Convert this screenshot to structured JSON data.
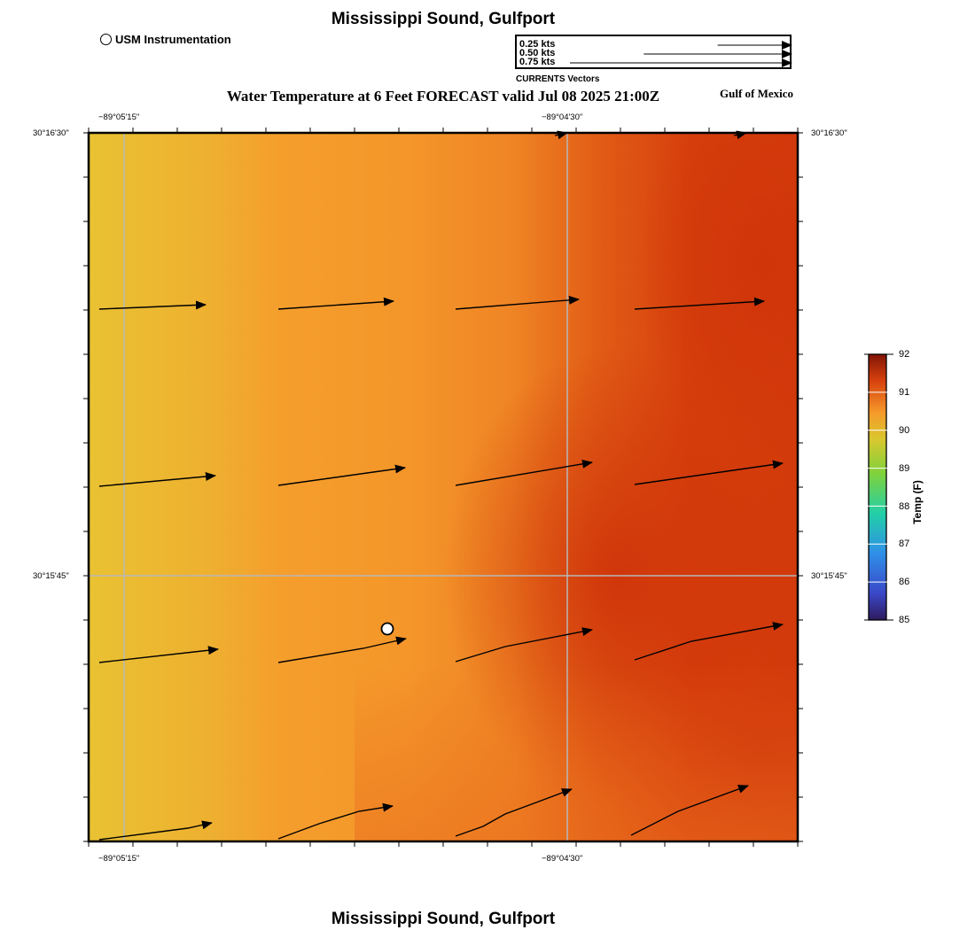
{
  "title": "Mississippi Sound, Gulfport",
  "footer_title": "Mississippi Sound, Gulfport",
  "subtitle": "Water Temperature at 6 Feet FORECAST valid Jul 08 2025 21:00Z",
  "region_label": "Gulf of Mexico",
  "instrument_legend": {
    "label": "USM Instrumentation",
    "icon": "circle-marker-icon"
  },
  "vector_legend": {
    "caption": "CURRENTS Vectors",
    "entries": [
      {
        "label": "0.25 kts",
        "speed": 0.25
      },
      {
        "label": "0.50 kts",
        "speed": 0.5
      },
      {
        "label": "0.75 kts",
        "speed": 0.75
      }
    ]
  },
  "axes": {
    "lon_labels": [
      "−89°05'15\"",
      "−89°04'30\""
    ],
    "lat_labels": [
      "30°16'30\"",
      "30°15'45\""
    ]
  },
  "colorbar": {
    "title": "Temp (F)",
    "min": 85,
    "max": 92,
    "ticks": [
      "92",
      "91",
      "90",
      "89",
      "88",
      "87",
      "86",
      "85"
    ]
  },
  "colors": {
    "cool": "#e8c030",
    "warm": "#f59a2a",
    "hot": "#d0380c",
    "grid": "#b8b8b8"
  }
}
